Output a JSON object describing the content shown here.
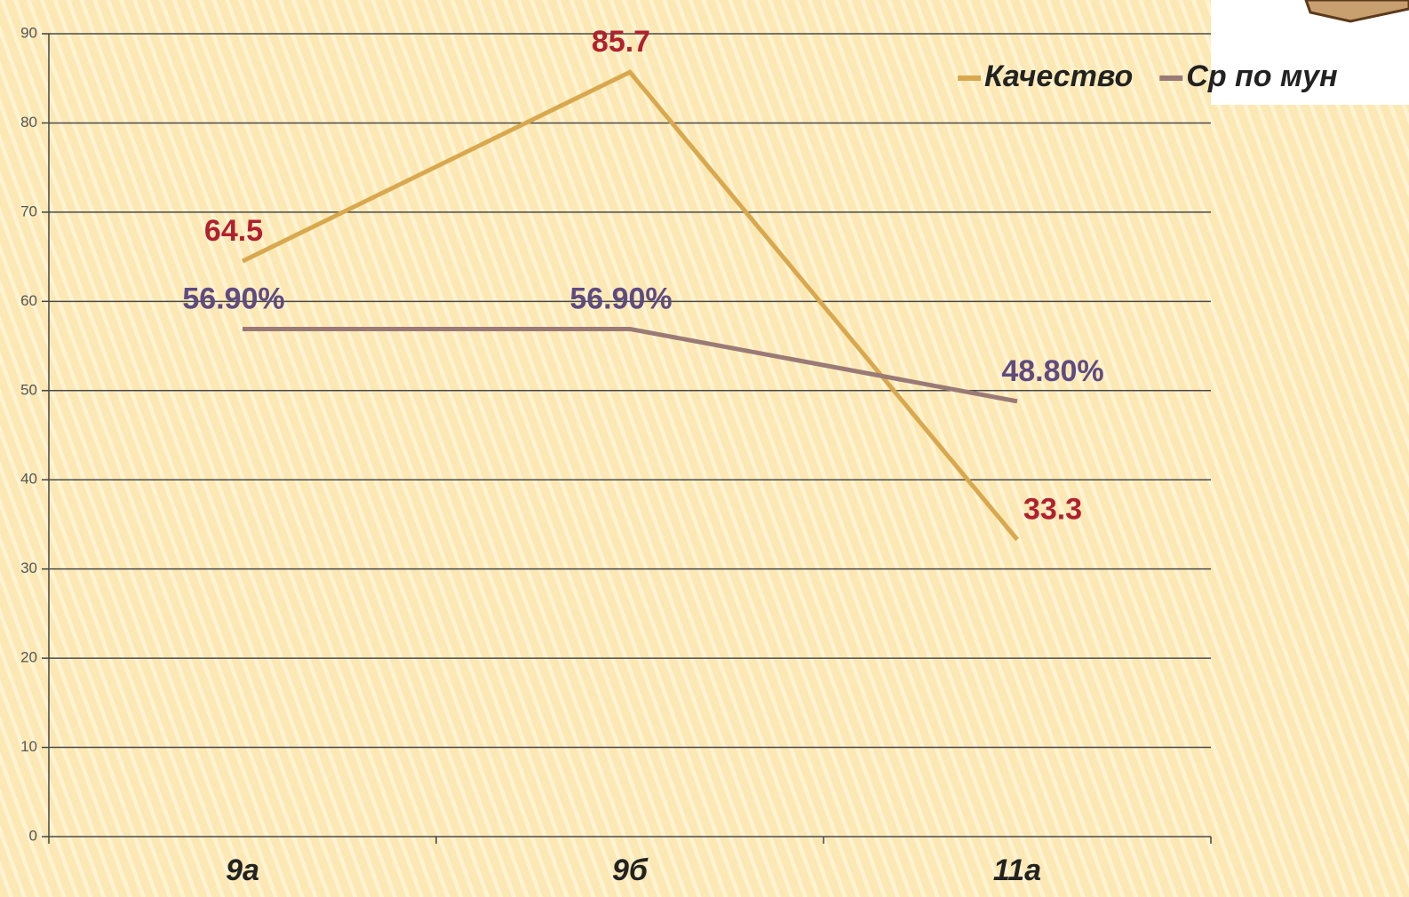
{
  "chart_data": {
    "type": "line",
    "categories": [
      "9а",
      "9б",
      "11а"
    ],
    "series": [
      {
        "name": "Качество",
        "color": "#d9a84e",
        "label_color": "#b0202e",
        "values": [
          64.5,
          85.7,
          33.3
        ]
      },
      {
        "name": "Ср по мун",
        "color": "#9a7a76",
        "label_color": "#5f4b80",
        "values": [
          56.9,
          56.9,
          48.8
        ],
        "value_labels": [
          "56.90%",
          "56.90%",
          "48.80%"
        ]
      }
    ],
    "ylim": [
      0,
      90
    ],
    "yticks": [
      0,
      10,
      20,
      30,
      40,
      50,
      60,
      70,
      80,
      90
    ],
    "grid": true
  }
}
